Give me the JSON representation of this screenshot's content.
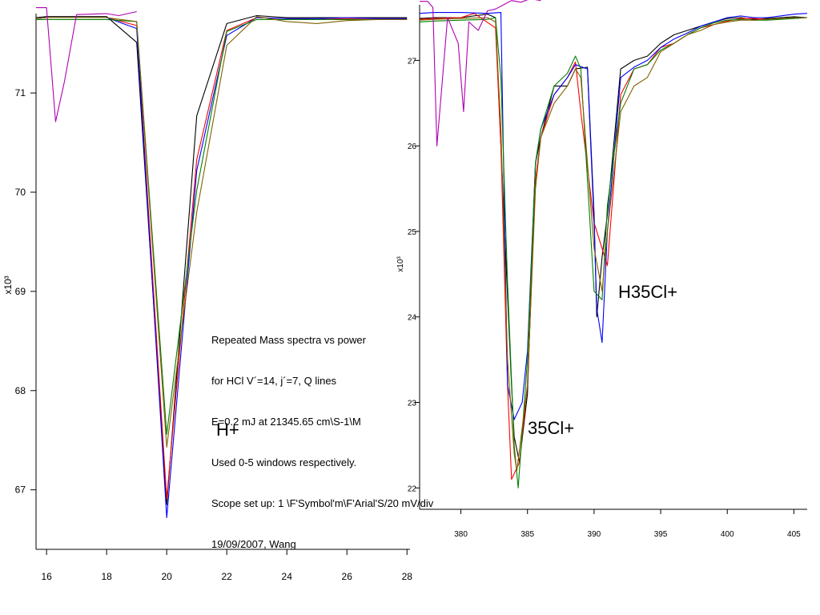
{
  "annotation": {
    "lines": [
      "Repeated Mass spectra vs power",
      "for HCl V´=14, j´=7, Q lines",
      "E=0.2 mJ at 21345.65 cm\\S-1\\M",
      "Used 0-5 windows respectively.",
      "Scope set up: 1 \\F'Symbol'm\\F'Arial'S/20 mV/div",
      "19/09/2007, Wang"
    ]
  },
  "peak_labels": {
    "left": "H+",
    "right_a": "35Cl+",
    "right_b": "H35Cl+"
  },
  "chart_data": [
    {
      "type": "line",
      "xlim": [
        15.65,
        28.1
      ],
      "ylim": [
        66.4,
        71.8
      ],
      "x_ticks": [
        16,
        18,
        20,
        22,
        24,
        26,
        28
      ],
      "y_ticks": [
        67,
        68,
        69,
        70,
        71
      ],
      "y_multiplier_label": "x10³",
      "grid": false,
      "series": [
        {
          "color": "#000000",
          "x": [
            15.65,
            16,
            17,
            18,
            19,
            20,
            21,
            22,
            23,
            24,
            25,
            26,
            27,
            28
          ],
          "y": [
            71.76,
            71.77,
            71.77,
            71.77,
            71.51,
            66.85,
            70.77,
            71.7,
            71.78,
            71.76,
            71.76,
            71.76,
            71.76,
            71.76
          ]
        },
        {
          "color": "#ff0000",
          "x": [
            15.65,
            16,
            17,
            18,
            19,
            20,
            21,
            22,
            23,
            24,
            25,
            26,
            27,
            28
          ],
          "y": [
            71.75,
            71.76,
            71.76,
            71.76,
            71.68,
            66.91,
            70.33,
            71.63,
            71.76,
            71.75,
            71.74,
            71.75,
            71.75,
            71.75
          ]
        },
        {
          "color": "#0000ff",
          "x": [
            15.65,
            16,
            17,
            18,
            19,
            20,
            21,
            22,
            23,
            24,
            25,
            26,
            27,
            28
          ],
          "y": [
            71.75,
            71.76,
            71.76,
            71.76,
            71.65,
            66.72,
            70.22,
            71.58,
            71.76,
            71.75,
            71.75,
            71.76,
            71.75,
            71.75
          ]
        },
        {
          "color": "#008000",
          "x": [
            15.65,
            16,
            17,
            18,
            19,
            20,
            21,
            22,
            23,
            24,
            25,
            26,
            27,
            28
          ],
          "y": [
            71.74,
            71.74,
            71.74,
            71.74,
            71.72,
            67.56,
            70.02,
            71.62,
            71.74,
            71.74,
            71.74,
            71.74,
            71.74,
            71.74
          ]
        },
        {
          "color": "#806000",
          "x": [
            15.65,
            16,
            17,
            18,
            19,
            20,
            21,
            22,
            23,
            24,
            25,
            26,
            27,
            28
          ],
          "y": [
            71.75,
            71.76,
            71.76,
            71.76,
            71.72,
            67.43,
            69.8,
            71.48,
            71.77,
            71.72,
            71.7,
            71.73,
            71.74,
            71.74
          ]
        },
        {
          "color": "#b000b0",
          "x": [
            15.65,
            16,
            16.3,
            16.6,
            17,
            18,
            18.4,
            19
          ],
          "y": [
            71.86,
            71.86,
            70.71,
            71.12,
            71.79,
            71.8,
            71.78,
            71.82
          ]
        }
      ]
    },
    {
      "type": "line",
      "xlim": [
        376.9,
        406
      ],
      "ylim": [
        21.75,
        27.65
      ],
      "x_ticks": [
        380,
        385,
        390,
        395,
        400,
        405
      ],
      "y_ticks": [
        22,
        23,
        24,
        25,
        26,
        27
      ],
      "y_multiplier_label": "x10³",
      "grid": false,
      "series": [
        {
          "color": "#000000",
          "x": [
            376.9,
            378,
            380,
            382,
            382.6,
            383,
            383.8,
            384,
            384.4,
            385,
            385.6,
            386,
            387,
            388,
            388.6,
            389.5,
            390,
            390.2,
            390.6,
            391,
            392,
            393,
            394,
            395,
            396,
            397,
            398,
            399,
            400,
            401,
            402,
            403,
            404,
            405,
            406
          ],
          "y": [
            27.49,
            27.5,
            27.5,
            27.54,
            27.5,
            26.0,
            23.2,
            22.6,
            22.3,
            23.1,
            25.8,
            26.1,
            26.7,
            26.7,
            26.9,
            26.92,
            25.2,
            24.0,
            24.7,
            25.2,
            26.9,
            27.0,
            27.05,
            27.2,
            27.3,
            27.35,
            27.4,
            27.45,
            27.49,
            27.5,
            27.48,
            27.49,
            27.5,
            27.51,
            27.5
          ]
        },
        {
          "color": "#ff0000",
          "x": [
            376.9,
            378,
            380,
            381,
            382.6,
            383,
            383.5,
            383.8,
            384.4,
            385,
            385.6,
            386,
            387,
            388,
            388.6,
            389,
            390,
            390.6,
            391,
            392,
            393,
            394,
            395,
            396,
            397,
            398,
            399,
            400,
            401,
            402,
            403,
            404,
            405,
            406
          ],
          "y": [
            27.48,
            27.49,
            27.5,
            27.55,
            27.38,
            26.0,
            23.2,
            22.1,
            22.3,
            23.2,
            25.6,
            26.1,
            26.6,
            26.8,
            26.98,
            26.4,
            25.1,
            24.8,
            24.6,
            26.6,
            26.9,
            26.95,
            27.15,
            27.2,
            27.3,
            27.38,
            27.42,
            27.46,
            27.49,
            27.49,
            27.48,
            27.49,
            27.49,
            27.5
          ]
        },
        {
          "color": "#0000ff",
          "x": [
            376.9,
            378,
            380,
            382,
            383,
            383.5,
            384,
            384.6,
            385,
            385.6,
            386,
            387,
            388,
            388.6,
            389.5,
            390,
            390.2,
            390.6,
            391,
            392,
            393,
            394,
            395,
            396,
            397,
            398,
            399,
            400,
            401,
            402,
            403,
            404,
            405,
            406
          ],
          "y": [
            27.55,
            27.56,
            27.56,
            27.55,
            27.56,
            23.2,
            22.8,
            23.0,
            23.6,
            25.8,
            26.2,
            26.6,
            26.8,
            26.95,
            26.9,
            25.1,
            24.1,
            23.7,
            25.0,
            26.8,
            26.92,
            27.0,
            27.15,
            27.25,
            27.32,
            27.4,
            27.45,
            27.5,
            27.52,
            27.5,
            27.5,
            27.52,
            27.54,
            27.55
          ]
        },
        {
          "color": "#008000",
          "x": [
            376.9,
            378,
            380,
            382,
            382.6,
            383,
            383.5,
            384,
            384.3,
            385,
            385.6,
            386,
            387,
            388,
            388.6,
            389,
            390,
            390.6,
            391,
            392,
            393,
            394,
            395,
            396,
            397,
            398,
            399,
            400,
            401,
            402,
            403,
            404,
            405,
            406
          ],
          "y": [
            27.45,
            27.46,
            27.47,
            27.48,
            27.5,
            26.8,
            24.4,
            22.5,
            22.0,
            23.5,
            25.8,
            26.2,
            26.7,
            26.85,
            27.05,
            26.9,
            24.3,
            24.2,
            25.3,
            26.5,
            26.9,
            26.95,
            27.12,
            27.2,
            27.3,
            27.38,
            27.44,
            27.47,
            27.48,
            27.47,
            27.47,
            27.48,
            27.49,
            27.5
          ]
        },
        {
          "color": "#806000",
          "x": [
            376.9,
            378,
            380,
            382,
            382.6,
            383,
            383.5,
            384,
            384.2,
            385,
            385.6,
            386,
            387,
            388,
            388.6,
            389,
            390,
            390.6,
            391,
            392,
            393,
            394,
            395,
            396,
            397,
            398,
            399,
            400,
            401,
            402,
            403,
            404,
            405,
            406
          ],
          "y": [
            27.47,
            27.48,
            27.49,
            27.5,
            27.45,
            26.2,
            23.5,
            22.4,
            22.2,
            23.2,
            25.5,
            26.1,
            26.5,
            26.7,
            26.9,
            26.8,
            24.8,
            24.3,
            25.0,
            26.4,
            26.7,
            26.8,
            27.1,
            27.2,
            27.3,
            27.35,
            27.42,
            27.45,
            27.47,
            27.47,
            27.48,
            27.49,
            27.5,
            27.5
          ]
        },
        {
          "color": "#b000b0",
          "x": [
            376.9,
            377.5,
            377.9,
            378.2,
            379,
            379.8,
            380.2,
            380.6,
            381.3,
            382,
            382.6,
            383.2,
            383.8,
            384.5,
            385.2,
            386
          ],
          "y": [
            27.69,
            27.69,
            27.62,
            26.0,
            27.5,
            27.2,
            26.4,
            27.45,
            27.35,
            27.58,
            27.6,
            27.65,
            27.7,
            27.68,
            27.72,
            27.7
          ]
        }
      ]
    }
  ]
}
